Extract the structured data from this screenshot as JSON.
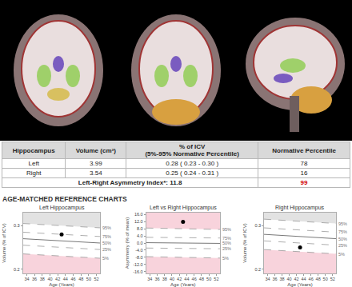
{
  "table": {
    "header": [
      [
        "Hippocampus"
      ],
      [
        "Volume (cm³)"
      ],
      [
        "% of ICV",
        "(5%-95% Normative Percentile)"
      ],
      [
        "Normative Percentile"
      ]
    ],
    "rows": [
      [
        "Left",
        "3.99",
        "0.28 ( 0.23 - 0.30 )",
        "78"
      ],
      [
        "Right",
        "3.54",
        "0.25 ( 0.24 - 0.31 )",
        "16"
      ]
    ],
    "asymmetry": {
      "label": "Left-Right Asymmetry Index*:",
      "value": "11.8",
      "percentile": "99"
    }
  },
  "section_title": "AGE-MATCHED REFERENCE CHARTS",
  "chart_data": [
    {
      "type": "line",
      "title": "Left Hippocampus",
      "x_label": "Age (Years)",
      "y_label": "Volume (% of ICV)",
      "xlim": [
        33,
        53
      ],
      "xticks": [
        34,
        36,
        38,
        40,
        42,
        44,
        46,
        48,
        50,
        52
      ],
      "ylim": [
        0.19,
        0.33
      ],
      "yticks": [
        0.2,
        0.3
      ],
      "grid": false,
      "series": [
        {
          "name": "95%",
          "type": "area_above",
          "color": "#e2e2e2",
          "line_style": "dashed",
          "x": [
            33,
            53
          ],
          "values": [
            0.305,
            0.295
          ]
        },
        {
          "name": "75%",
          "type": "line",
          "line_style": "dashed",
          "x": [
            33,
            53
          ],
          "values": [
            0.285,
            0.275
          ]
        },
        {
          "name": "50%",
          "type": "line",
          "line_style": "solid",
          "x": [
            33,
            53
          ],
          "values": [
            0.27,
            0.26
          ]
        },
        {
          "name": "25%",
          "type": "line",
          "line_style": "dashed",
          "x": [
            33,
            53
          ],
          "values": [
            0.255,
            0.245
          ]
        },
        {
          "name": "5%",
          "type": "area_below",
          "color": "#f8d3dc",
          "line_style": "dashed",
          "x": [
            33,
            53
          ],
          "values": [
            0.235,
            0.225
          ]
        },
        {
          "type": "scatter",
          "marker": "circle",
          "color": "#000000",
          "x": [
            43
          ],
          "values": [
            0.28
          ]
        }
      ]
    },
    {
      "type": "line",
      "title": "Left vs Right Hippocampus",
      "x_label": "Age (Years)",
      "y_label": "Asymmetry (% of mean)",
      "xlim": [
        33,
        53
      ],
      "xticks": [
        34,
        36,
        38,
        40,
        42,
        44,
        46,
        48,
        50,
        52
      ],
      "ylim": [
        -17,
        17
      ],
      "yticks": [
        {
          "value": -16,
          "label": "-16.0"
        },
        {
          "value": -12,
          "label": "-12.0"
        },
        {
          "value": -8,
          "label": "-8.0"
        },
        {
          "value": -4,
          "label": "-4.0"
        },
        {
          "value": 0,
          "label": "0.0"
        },
        {
          "value": 4,
          "label": "4.0"
        },
        {
          "value": 8,
          "label": "8.0"
        },
        {
          "value": 12,
          "label": "12.0"
        },
        {
          "value": 16,
          "label": "16.0"
        }
      ],
      "grid": false,
      "series": [
        {
          "name": "95%",
          "type": "area_above",
          "color": "#f8d3dc",
          "line_style": "dashed",
          "x": [
            33,
            53
          ],
          "values": [
            8.4,
            7.6
          ]
        },
        {
          "name": "75%",
          "type": "line",
          "line_style": "dashed",
          "x": [
            33,
            53
          ],
          "values": [
            3.2,
            2.8
          ]
        },
        {
          "name": "50%",
          "type": "line",
          "line_style": "solid",
          "x": [
            33,
            53
          ],
          "values": [
            0.2,
            -0.2
          ]
        },
        {
          "name": "25%",
          "type": "line",
          "line_style": "dashed",
          "x": [
            33,
            53
          ],
          "values": [
            -2.8,
            -3.2
          ]
        },
        {
          "name": "5%",
          "type": "area_below",
          "color": "#f8d3dc",
          "line_style": "dashed",
          "x": [
            33,
            53
          ],
          "values": [
            -7.6,
            -8.4
          ]
        },
        {
          "type": "scatter",
          "marker": "circle",
          "color": "#000000",
          "x": [
            43
          ],
          "values": [
            11.8
          ]
        }
      ]
    },
    {
      "type": "line",
      "title": "Right Hippocampus",
      "x_label": "Age (Years)",
      "y_label": "Volume (% of ICV)",
      "xlim": [
        33,
        53
      ],
      "xticks": [
        34,
        36,
        38,
        40,
        42,
        44,
        46,
        48,
        50,
        52
      ],
      "ylim": [
        0.19,
        0.33
      ],
      "yticks": [
        0.2,
        0.3
      ],
      "grid": false,
      "series": [
        {
          "name": "95%",
          "type": "area_above",
          "color": "#e2e2e2",
          "line_style": "dashed",
          "x": [
            33,
            53
          ],
          "values": [
            0.315,
            0.305
          ]
        },
        {
          "name": "75%",
          "type": "line",
          "line_style": "dashed",
          "x": [
            33,
            53
          ],
          "values": [
            0.295,
            0.285
          ]
        },
        {
          "name": "50%",
          "type": "line",
          "line_style": "solid",
          "x": [
            33,
            53
          ],
          "values": [
            0.28,
            0.27
          ]
        },
        {
          "name": "25%",
          "type": "line",
          "line_style": "dashed",
          "x": [
            33,
            53
          ],
          "values": [
            0.265,
            0.255
          ]
        },
        {
          "name": "5%",
          "type": "area_below",
          "color": "#f8d3dc",
          "line_style": "dashed",
          "x": [
            33,
            53
          ],
          "values": [
            0.245,
            0.235
          ]
        },
        {
          "type": "scatter",
          "marker": "circle",
          "color": "#000000",
          "x": [
            43
          ],
          "values": [
            0.25
          ]
        }
      ]
    }
  ]
}
